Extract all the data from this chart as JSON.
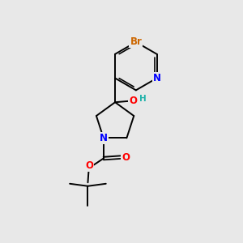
{
  "background_color": "#e8e8e8",
  "fig_width": 3.0,
  "fig_height": 3.0,
  "dpi": 100,
  "atom_colors": {
    "C": "#000000",
    "N": "#0000ff",
    "O": "#ff0000",
    "Br": "#cc6600",
    "H": "#20b2aa"
  },
  "bond_color": "#000000",
  "bond_width": 1.4,
  "font_size_atom": 8.5,
  "font_size_h": 7.5
}
